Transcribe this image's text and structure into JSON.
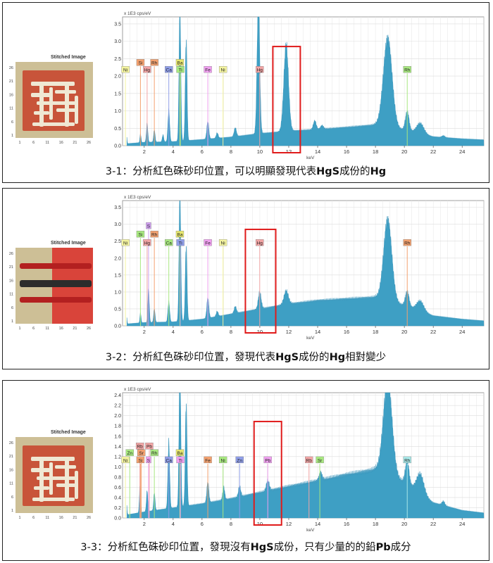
{
  "panels": [
    {
      "caption_prefix": "3-1：分析紅色硃砂印位置，可以明顯發現代表",
      "caption_b1": "HgS",
      "caption_mid": "成份的",
      "caption_b2": "Hg",
      "caption_suffix": "",
      "thumbnail_title": "Stitched Image",
      "thumbnail_yticks": [
        "26",
        "21",
        "16",
        "11",
        "6",
        "1"
      ],
      "thumbnail_xticks": [
        "1",
        "6",
        "11",
        "16",
        "21",
        "26"
      ],
      "thumbnail_style": "seal-white-strokes"
    },
    {
      "caption_prefix": "3-2：分析紅色硃砂印位置，發現代表",
      "caption_b1": "HgS",
      "caption_mid": "成份的",
      "caption_b2": "Hg",
      "caption_suffix": "相對變少",
      "thumbnail_title": "Stitched Image",
      "thumbnail_yticks": [
        "26",
        "21",
        "16",
        "11",
        "6",
        "1"
      ],
      "thumbnail_xticks": [
        "1",
        "6",
        "11",
        "16",
        "21",
        "26"
      ],
      "thumbnail_style": "red-with-black-stroke"
    },
    {
      "caption_prefix": "3-3：分析紅色硃砂印位置，發現沒有",
      "caption_b1": "HgS",
      "caption_mid": "成份，只有少量的的鉛",
      "caption_b2": "Pb",
      "caption_suffix": "成分",
      "thumbnail_title": "Stitched Image",
      "thumbnail_yticks": [
        "26",
        "21",
        "16",
        "11",
        "6",
        "1"
      ],
      "thumbnail_xticks": [
        "1",
        "6",
        "11",
        "16",
        "21",
        "26"
      ],
      "thumbnail_style": "seal-white-strokes"
    }
  ],
  "chart_data": [
    {
      "type": "area",
      "units_label": "x 1E3 cps/eV",
      "xlabel": "keV",
      "xlim": [
        0.5,
        25.5
      ],
      "ylim": [
        0,
        3.7
      ],
      "xticks": [
        2,
        4,
        6,
        8,
        10,
        12,
        14,
        16,
        18,
        20,
        22,
        24
      ],
      "yticks": [
        0.0,
        0.5,
        1.0,
        1.5,
        2.0,
        2.5,
        3.0,
        3.5
      ],
      "grid": true,
      "fill_color": "#3e9fc4",
      "baseline": [
        [
          0.5,
          0.05
        ],
        [
          2,
          0.1
        ],
        [
          4,
          0.12
        ],
        [
          6,
          0.18
        ],
        [
          8,
          0.25
        ],
        [
          10,
          0.35
        ],
        [
          12,
          0.42
        ],
        [
          14,
          0.47
        ],
        [
          16,
          0.53
        ],
        [
          18,
          0.6
        ],
        [
          20,
          0.45
        ],
        [
          22,
          0.26
        ],
        [
          24,
          0.2
        ],
        [
          25.5,
          0.17
        ]
      ],
      "peaks": [
        [
          0.75,
          0.4,
          0.04
        ],
        [
          1.74,
          0.25,
          0.04
        ],
        [
          2.2,
          0.55,
          0.05
        ],
        [
          2.7,
          0.35,
          0.05
        ],
        [
          3.3,
          0.2,
          0.05
        ],
        [
          3.7,
          0.9,
          0.06
        ],
        [
          4.47,
          3.9,
          0.06
        ],
        [
          4.9,
          2.9,
          0.06
        ],
        [
          6.4,
          0.5,
          0.07
        ],
        [
          7.05,
          0.15,
          0.07
        ],
        [
          8.3,
          0.25,
          0.08
        ],
        [
          9.9,
          3.9,
          0.09
        ],
        [
          11.82,
          2.5,
          0.16
        ],
        [
          13.8,
          0.25,
          0.1
        ],
        [
          14.3,
          0.1,
          0.1
        ],
        [
          18.85,
          2.55,
          0.3
        ],
        [
          20.2,
          0.55,
          0.13
        ],
        [
          21.1,
          0.3,
          0.25
        ],
        [
          22.7,
          0.05,
          0.1
        ]
      ],
      "element_labels": [
        {
          "text": "Si",
          "x": 1.74,
          "y": 2.38,
          "color": "#f3a16f"
        },
        {
          "text": "Rh",
          "x": 2.7,
          "y": 2.38,
          "color": "#f3a16f"
        },
        {
          "text": "Ba",
          "x": 4.47,
          "y": 2.38,
          "color": "#e8e870"
        },
        {
          "text": "Ni",
          "x": 0.7,
          "y": 2.18,
          "color": "#f4f4a0"
        },
        {
          "text": "Hg",
          "x": 2.2,
          "y": 2.18,
          "color": "#f2a5a5"
        },
        {
          "text": "Ca",
          "x": 3.7,
          "y": 2.18,
          "color": "#8f9ee8"
        },
        {
          "text": "Ti",
          "x": 4.5,
          "y": 2.18,
          "color": "#a8e880"
        },
        {
          "text": "Fe",
          "x": 6.4,
          "y": 2.18,
          "color": "#f0a0f0"
        },
        {
          "text": "Ni",
          "x": 7.45,
          "y": 2.18,
          "color": "#f4f4a0"
        },
        {
          "text": "Hg",
          "x": 9.99,
          "y": 2.18,
          "color": "#f2a5a5"
        },
        {
          "text": "Rh",
          "x": 20.2,
          "y": 2.18,
          "color": "#a8e880"
        }
      ],
      "highlight_box": {
        "x_start": 10.9,
        "x_end": 12.8
      }
    },
    {
      "type": "area",
      "units_label": "x 1E3 cps/eV",
      "xlabel": "keV",
      "xlim": [
        0.5,
        25.5
      ],
      "ylim": [
        0,
        3.7
      ],
      "xticks": [
        2,
        4,
        6,
        8,
        10,
        12,
        14,
        16,
        18,
        20,
        22,
        24
      ],
      "yticks": [
        0.0,
        0.5,
        1.0,
        1.5,
        2.0,
        2.5,
        3.0,
        3.5
      ],
      "grid": true,
      "fill_color": "#3e9fc4",
      "baseline": [
        [
          0.5,
          0.05
        ],
        [
          2,
          0.1
        ],
        [
          4,
          0.12
        ],
        [
          6,
          0.2
        ],
        [
          8,
          0.35
        ],
        [
          10,
          0.5
        ],
        [
          12,
          0.65
        ],
        [
          14,
          0.75
        ],
        [
          16,
          0.8
        ],
        [
          18,
          0.85
        ],
        [
          20,
          0.6
        ],
        [
          22,
          0.3
        ],
        [
          24,
          0.2
        ],
        [
          25.5,
          0.15
        ]
      ],
      "peaks": [
        [
          0.75,
          0.4,
          0.04
        ],
        [
          1.74,
          0.3,
          0.04
        ],
        [
          2.3,
          1.0,
          0.05
        ],
        [
          2.7,
          0.4,
          0.05
        ],
        [
          3.7,
          0.6,
          0.06
        ],
        [
          4.47,
          3.9,
          0.06
        ],
        [
          4.9,
          2.2,
          0.06
        ],
        [
          6.4,
          0.6,
          0.07
        ],
        [
          7.05,
          0.15,
          0.07
        ],
        [
          8.3,
          0.2,
          0.08
        ],
        [
          9.99,
          0.5,
          0.1
        ],
        [
          11.82,
          0.4,
          0.15
        ],
        [
          18.85,
          2.4,
          0.28
        ],
        [
          20.2,
          0.45,
          0.13
        ],
        [
          21.1,
          0.3,
          0.25
        ]
      ],
      "element_labels": [
        {
          "text": "S",
          "x": 2.3,
          "y": 2.95,
          "color": "#d0a0f0"
        },
        {
          "text": "Si",
          "x": 1.74,
          "y": 2.7,
          "color": "#a8e880"
        },
        {
          "text": "Rh",
          "x": 2.7,
          "y": 2.7,
          "color": "#f3a16f"
        },
        {
          "text": "Ba",
          "x": 4.47,
          "y": 2.7,
          "color": "#e8e870"
        },
        {
          "text": "Ni",
          "x": 0.7,
          "y": 2.45,
          "color": "#f4f4a0"
        },
        {
          "text": "Hg",
          "x": 2.2,
          "y": 2.45,
          "color": "#f2a5a5"
        },
        {
          "text": "Ca",
          "x": 3.7,
          "y": 2.45,
          "color": "#a8e880"
        },
        {
          "text": "Ti",
          "x": 4.5,
          "y": 2.45,
          "color": "#8f9ee8"
        },
        {
          "text": "Fe",
          "x": 6.4,
          "y": 2.45,
          "color": "#f0a0f0"
        },
        {
          "text": "Ni",
          "x": 7.45,
          "y": 2.45,
          "color": "#f4f4a0"
        },
        {
          "text": "Hg",
          "x": 9.99,
          "y": 2.45,
          "color": "#f2a5a5"
        },
        {
          "text": "Rh",
          "x": 20.2,
          "y": 2.45,
          "color": "#f3a16f"
        }
      ],
      "highlight_box": {
        "x_start": 9.0,
        "x_end": 11.1
      }
    },
    {
      "type": "area",
      "units_label": "x 1E3 cps/eV",
      "xlabel": "keV",
      "xlim": [
        0.5,
        25.5
      ],
      "ylim": [
        0,
        2.45
      ],
      "xticks": [
        2,
        4,
        6,
        8,
        10,
        12,
        14,
        16,
        18,
        20,
        22,
        24
      ],
      "yticks": [
        0.0,
        0.2,
        0.4,
        0.6,
        0.8,
        1.0,
        1.2,
        1.4,
        1.6,
        1.8,
        2.0,
        2.2,
        2.4
      ],
      "grid": true,
      "fill_color": "#3e9fc4",
      "baseline": [
        [
          0.5,
          0.05
        ],
        [
          2,
          0.12
        ],
        [
          4,
          0.2
        ],
        [
          6,
          0.28
        ],
        [
          8,
          0.38
        ],
        [
          10,
          0.5
        ],
        [
          12,
          0.62
        ],
        [
          14,
          0.73
        ],
        [
          16,
          0.85
        ],
        [
          18,
          0.95
        ],
        [
          20,
          0.7
        ],
        [
          22,
          0.3
        ],
        [
          24,
          0.15
        ],
        [
          25.5,
          0.1
        ]
      ],
      "peaks": [
        [
          0.75,
          0.4,
          0.04
        ],
        [
          1.7,
          0.5,
          0.04
        ],
        [
          2.2,
          0.4,
          0.05
        ],
        [
          2.7,
          0.35,
          0.05
        ],
        [
          3.7,
          1.3,
          0.06
        ],
        [
          4.47,
          2.8,
          0.06
        ],
        [
          4.9,
          2.0,
          0.06
        ],
        [
          6.4,
          0.4,
          0.07
        ],
        [
          7.5,
          0.25,
          0.07
        ],
        [
          8.6,
          0.2,
          0.08
        ],
        [
          10.55,
          0.2,
          0.1
        ],
        [
          14.2,
          0.15,
          0.1
        ],
        [
          18.85,
          1.85,
          0.3
        ],
        [
          20.2,
          0.45,
          0.13
        ],
        [
          21.1,
          0.38,
          0.25
        ],
        [
          22.7,
          0.08,
          0.1
        ]
      ],
      "element_labels": [
        {
          "text": "Rb",
          "x": 1.7,
          "y": 1.4,
          "color": "#f2a5a5"
        },
        {
          "text": "Pb",
          "x": 2.35,
          "y": 1.4,
          "color": "#f2a5a5"
        },
        {
          "text": "Zn",
          "x": 1.0,
          "y": 1.27,
          "color": "#a8e880"
        },
        {
          "text": "Sr",
          "x": 1.8,
          "y": 1.27,
          "color": "#f3a16f"
        },
        {
          "text": "Rh",
          "x": 2.7,
          "y": 1.27,
          "color": "#a8e880"
        },
        {
          "text": "Ba",
          "x": 4.47,
          "y": 1.27,
          "color": "#e8e870"
        },
        {
          "text": "Ni",
          "x": 0.7,
          "y": 1.13,
          "color": "#f4f4a0"
        },
        {
          "text": "Si",
          "x": 1.74,
          "y": 1.13,
          "color": "#f3a16f"
        },
        {
          "text": "S",
          "x": 2.3,
          "y": 1.13,
          "color": "#f0a0f0"
        },
        {
          "text": "Ca",
          "x": 3.7,
          "y": 1.13,
          "color": "#8f9ee8"
        },
        {
          "text": "Ti",
          "x": 4.5,
          "y": 1.13,
          "color": "#f0a0f0"
        },
        {
          "text": "Fe",
          "x": 6.4,
          "y": 1.13,
          "color": "#f3a16f"
        },
        {
          "text": "Ni",
          "x": 7.45,
          "y": 1.13,
          "color": "#a8e880"
        },
        {
          "text": "Zn",
          "x": 8.6,
          "y": 1.13,
          "color": "#8f9ee8"
        },
        {
          "text": "Pb",
          "x": 10.55,
          "y": 1.13,
          "color": "#f0a0f0"
        },
        {
          "text": "Rb",
          "x": 13.4,
          "y": 1.13,
          "color": "#f2a5a5"
        },
        {
          "text": "Sr",
          "x": 14.15,
          "y": 1.13,
          "color": "#a8e880"
        },
        {
          "text": "Rh",
          "x": 20.2,
          "y": 1.13,
          "color": "#a8e8e8"
        }
      ],
      "highlight_box": {
        "x_start": 9.6,
        "x_end": 11.5
      }
    }
  ]
}
